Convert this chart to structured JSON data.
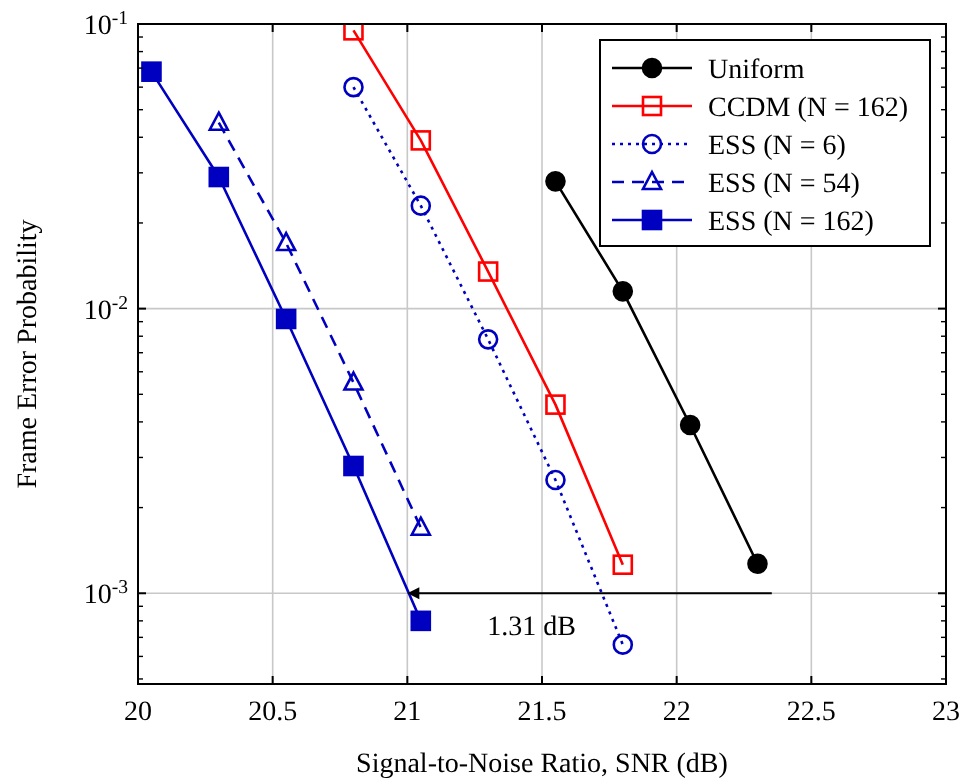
{
  "chart_data": {
    "type": "line",
    "xlabel": "Signal-to-Noise Ratio, SNR (dB)",
    "ylabel": "Frame Error Probability",
    "log": "y",
    "grid": true,
    "legend": "top right",
    "xlim": [
      20,
      23
    ],
    "xticks": [
      20,
      20.5,
      21,
      21.5,
      22,
      22.5,
      23
    ],
    "ylim": [
      0.00048,
      0.1
    ],
    "yticks": [
      {
        "value": 0.001,
        "label": "10$^{-3}$"
      },
      {
        "value": 0.01,
        "label": "10$^{-2}$"
      },
      {
        "value": 0.1,
        "label": "10$^{-1}$"
      }
    ],
    "series": [
      {
        "name": "Uniform",
        "color": "#000000",
        "marker": "circle-filled",
        "line_style": "solid",
        "x": [
          21.55,
          21.8,
          22.05,
          22.3
        ],
        "values": [
          0.028,
          0.0115,
          0.0039,
          0.00127
        ]
      },
      {
        "name": "CCDM (N = 162)",
        "color": "#ff0000",
        "marker": "square-open",
        "line_style": "solid",
        "x": [
          20.8,
          21.05,
          21.3,
          21.55,
          21.8
        ],
        "values": [
          0.095,
          0.039,
          0.0135,
          0.0046,
          0.00126
        ]
      },
      {
        "name": "ESS (N = 6)",
        "color": "#0000c0",
        "marker": "circle-open",
        "line_style": "dotted",
        "x": [
          20.8,
          21.05,
          21.3,
          21.55,
          21.8
        ],
        "values": [
          0.06,
          0.023,
          0.0078,
          0.0025,
          0.00066
        ]
      },
      {
        "name": "ESS (N = 54)",
        "color": "#0000c0",
        "marker": "triangle-open",
        "line_style": "dashed",
        "x": [
          20.3,
          20.55,
          20.8,
          21.05
        ],
        "values": [
          0.045,
          0.017,
          0.0055,
          0.0017
        ]
      },
      {
        "name": "ESS (N = 162)",
        "color": "#0000c0",
        "marker": "square-filled",
        "line_style": "solid",
        "x": [
          20.05,
          20.3,
          20.55,
          20.8,
          21.05
        ],
        "values": [
          0.068,
          0.029,
          0.0092,
          0.0028,
          0.0008
        ]
      }
    ],
    "annotations": [
      {
        "text": "1.31 dB",
        "x": 21.0,
        "y": 0.001
      }
    ]
  }
}
